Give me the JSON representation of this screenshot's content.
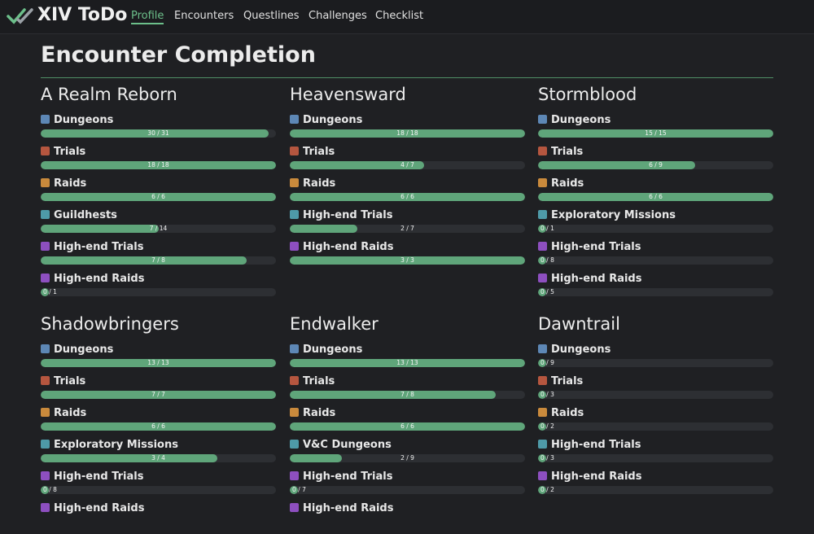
{
  "header": {
    "brand": "XIV ToDo",
    "nav": [
      "Profile",
      "Encounters",
      "Questlines",
      "Challenges",
      "Checklist"
    ]
  },
  "title": "Encounter Completion",
  "expansions": [
    {
      "name": "A Realm Reborn",
      "items": [
        {
          "name": "Dungeons",
          "progress": "30 / 31",
          "done": 30,
          "total": 31
        },
        {
          "name": "Trials",
          "progress": "18 / 18",
          "done": 18,
          "total": 18
        },
        {
          "name": "Raids",
          "progress": "6 / 6",
          "done": 6,
          "total": 6
        },
        {
          "name": "Guildhests",
          "progress": "7 / 14",
          "done": 7,
          "total": 14
        },
        {
          "name": "High-end Trials",
          "progress": "7 / 8",
          "done": 7,
          "total": 8
        },
        {
          "name": "High-end Raids",
          "progress": "0 / 1",
          "done": 0,
          "total": 1
        }
      ]
    },
    {
      "name": "Heavensward",
      "items": [
        {
          "name": "Dungeons",
          "progress": "18 / 18",
          "done": 18,
          "total": 18
        },
        {
          "name": "Trials",
          "progress": "4 / 7",
          "done": 4,
          "total": 7
        },
        {
          "name": "Raids",
          "progress": "6 / 6",
          "done": 6,
          "total": 6
        },
        {
          "name": "High-end Trials",
          "progress": "2 / 7",
          "done": 2,
          "total": 7
        },
        {
          "name": "High-end Raids",
          "progress": "3 / 3",
          "done": 3,
          "total": 3
        }
      ]
    },
    {
      "name": "Stormblood",
      "items": [
        {
          "name": "Dungeons",
          "progress": "15 / 15",
          "done": 15,
          "total": 15
        },
        {
          "name": "Trials",
          "progress": "6 / 9",
          "done": 6,
          "total": 9
        },
        {
          "name": "Raids",
          "progress": "6 / 6",
          "done": 6,
          "total": 6
        },
        {
          "name": "Exploratory Missions",
          "progress": "0 / 1",
          "done": 0,
          "total": 1
        },
        {
          "name": "High-end Trials",
          "progress": "0 / 8",
          "done": 0,
          "total": 8
        },
        {
          "name": "High-end Raids",
          "progress": "0 / 5",
          "done": 0,
          "total": 5
        }
      ]
    },
    {
      "name": "Shadowbringers",
      "items": [
        {
          "name": "Dungeons",
          "progress": "13 / 13",
          "done": 13,
          "total": 13
        },
        {
          "name": "Trials",
          "progress": "7 / 7",
          "done": 7,
          "total": 7
        },
        {
          "name": "Raids",
          "progress": "6 / 6",
          "done": 6,
          "total": 6
        },
        {
          "name": "Exploratory Missions",
          "progress": "3 / 4",
          "done": 3,
          "total": 4
        },
        {
          "name": "High-end Trials",
          "progress": "0 / 8",
          "done": 0,
          "total": 8
        },
        {
          "name": "High-end Raids"
        }
      ]
    },
    {
      "name": "Endwalker",
      "items": [
        {
          "name": "Dungeons",
          "progress": "13 / 13",
          "done": 13,
          "total": 13
        },
        {
          "name": "Trials",
          "progress": "7 / 8",
          "done": 7,
          "total": 8
        },
        {
          "name": "Raids",
          "progress": "6 / 6",
          "done": 6,
          "total": 6
        },
        {
          "name": "V&C Dungeons",
          "progress": "2 / 9",
          "done": 2,
          "total": 9
        },
        {
          "name": "High-end Trials",
          "progress": "0 / 7",
          "done": 0,
          "total": 7
        },
        {
          "name": "High-end Raids"
        }
      ]
    },
    {
      "name": "Dawntrail",
      "items": [
        {
          "name": "Dungeons",
          "progress": "0 / 9",
          "done": 0,
          "total": 9
        },
        {
          "name": "Trials",
          "progress": "0 / 3",
          "done": 0,
          "total": 3
        },
        {
          "name": "Raids",
          "progress": "0 / 2",
          "done": 0,
          "total": 2
        },
        {
          "name": "High-end Trials",
          "progress": "0 / 3",
          "done": 0,
          "total": 3
        },
        {
          "name": "High-end Raids",
          "progress": "0 / 2",
          "done": 0,
          "total": 2
        }
      ]
    }
  ]
}
